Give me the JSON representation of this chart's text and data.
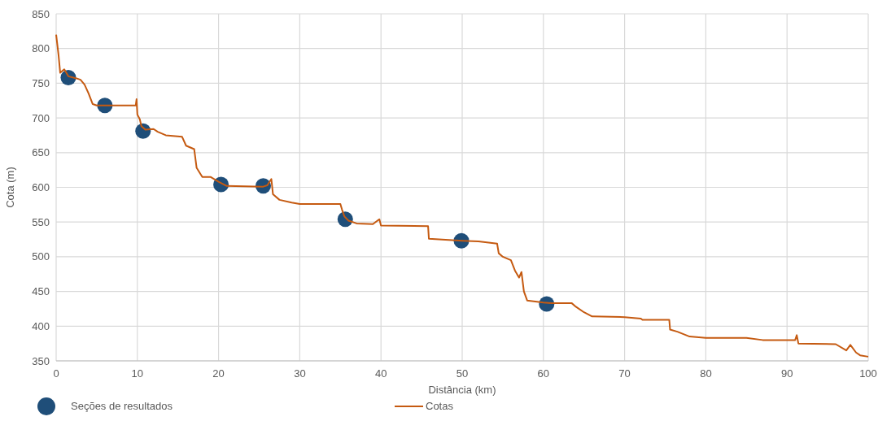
{
  "chart_data": {
    "type": "line",
    "xlabel": "Distância (km)",
    "ylabel": "Cota (m)",
    "xlim": [
      0,
      100
    ],
    "ylim": [
      350,
      850
    ],
    "xticks": [
      0,
      10,
      20,
      30,
      40,
      50,
      60,
      70,
      80,
      90,
      100
    ],
    "yticks": [
      350,
      400,
      450,
      500,
      550,
      600,
      650,
      700,
      750,
      800,
      850
    ],
    "grid": true,
    "legend": "bottom left",
    "series": [
      {
        "name": "Seções de resultados",
        "type": "scatter",
        "marker": "circle",
        "color": "#1f4e79",
        "x": [
          1.5,
          6,
          10.7,
          20.3,
          25.5,
          35.6,
          49.9,
          60.4
        ],
        "values": [
          758,
          718,
          681,
          604,
          602,
          554,
          523,
          432
        ]
      },
      {
        "name": "Cotas",
        "color": "#c55a11",
        "x": [
          0,
          0.3,
          0.5,
          1,
          1.5,
          2.5,
          3,
          3.5,
          4,
          4.5,
          5,
          9.8,
          9.9,
          10,
          10.3,
          10.5,
          11,
          12,
          12.5,
          13.5,
          15.5,
          16,
          17,
          17.3,
          18,
          19,
          20,
          21,
          25.5,
          26,
          26.5,
          26.7,
          27.5,
          29,
          30,
          35,
          35.2,
          35.5,
          36,
          37,
          39,
          39.8,
          40,
          45.8,
          45.9,
          50,
          52,
          54.3,
          54.5,
          55,
          56,
          56.5,
          57,
          57.3,
          57.6,
          58,
          60,
          61,
          63.5,
          64,
          65,
          66,
          70,
          72,
          72.2,
          75.5,
          75.6,
          76.5,
          78,
          80,
          85,
          87,
          91,
          91.2,
          91.4,
          96,
          97.3,
          97.8,
          98.5,
          99,
          100
        ],
        "values": [
          820,
          790,
          765,
          770,
          760,
          757,
          755,
          748,
          735,
          720,
          718,
          718,
          727,
          705,
          698,
          688,
          683,
          684,
          680,
          675,
          673,
          660,
          655,
          628,
          615,
          615,
          608,
          602,
          601,
          603,
          612,
          590,
          582,
          578,
          576,
          576,
          568,
          558,
          552,
          548,
          547,
          554,
          545,
          544,
          526,
          523,
          522,
          519,
          505,
          500,
          495,
          480,
          470,
          478,
          450,
          437,
          434,
          433,
          433,
          428,
          420,
          414,
          413,
          411,
          409,
          409,
          395,
          392,
          385,
          383,
          383,
          380,
          380,
          387,
          375,
          374,
          365,
          373,
          362,
          358,
          356
        ]
      }
    ]
  }
}
